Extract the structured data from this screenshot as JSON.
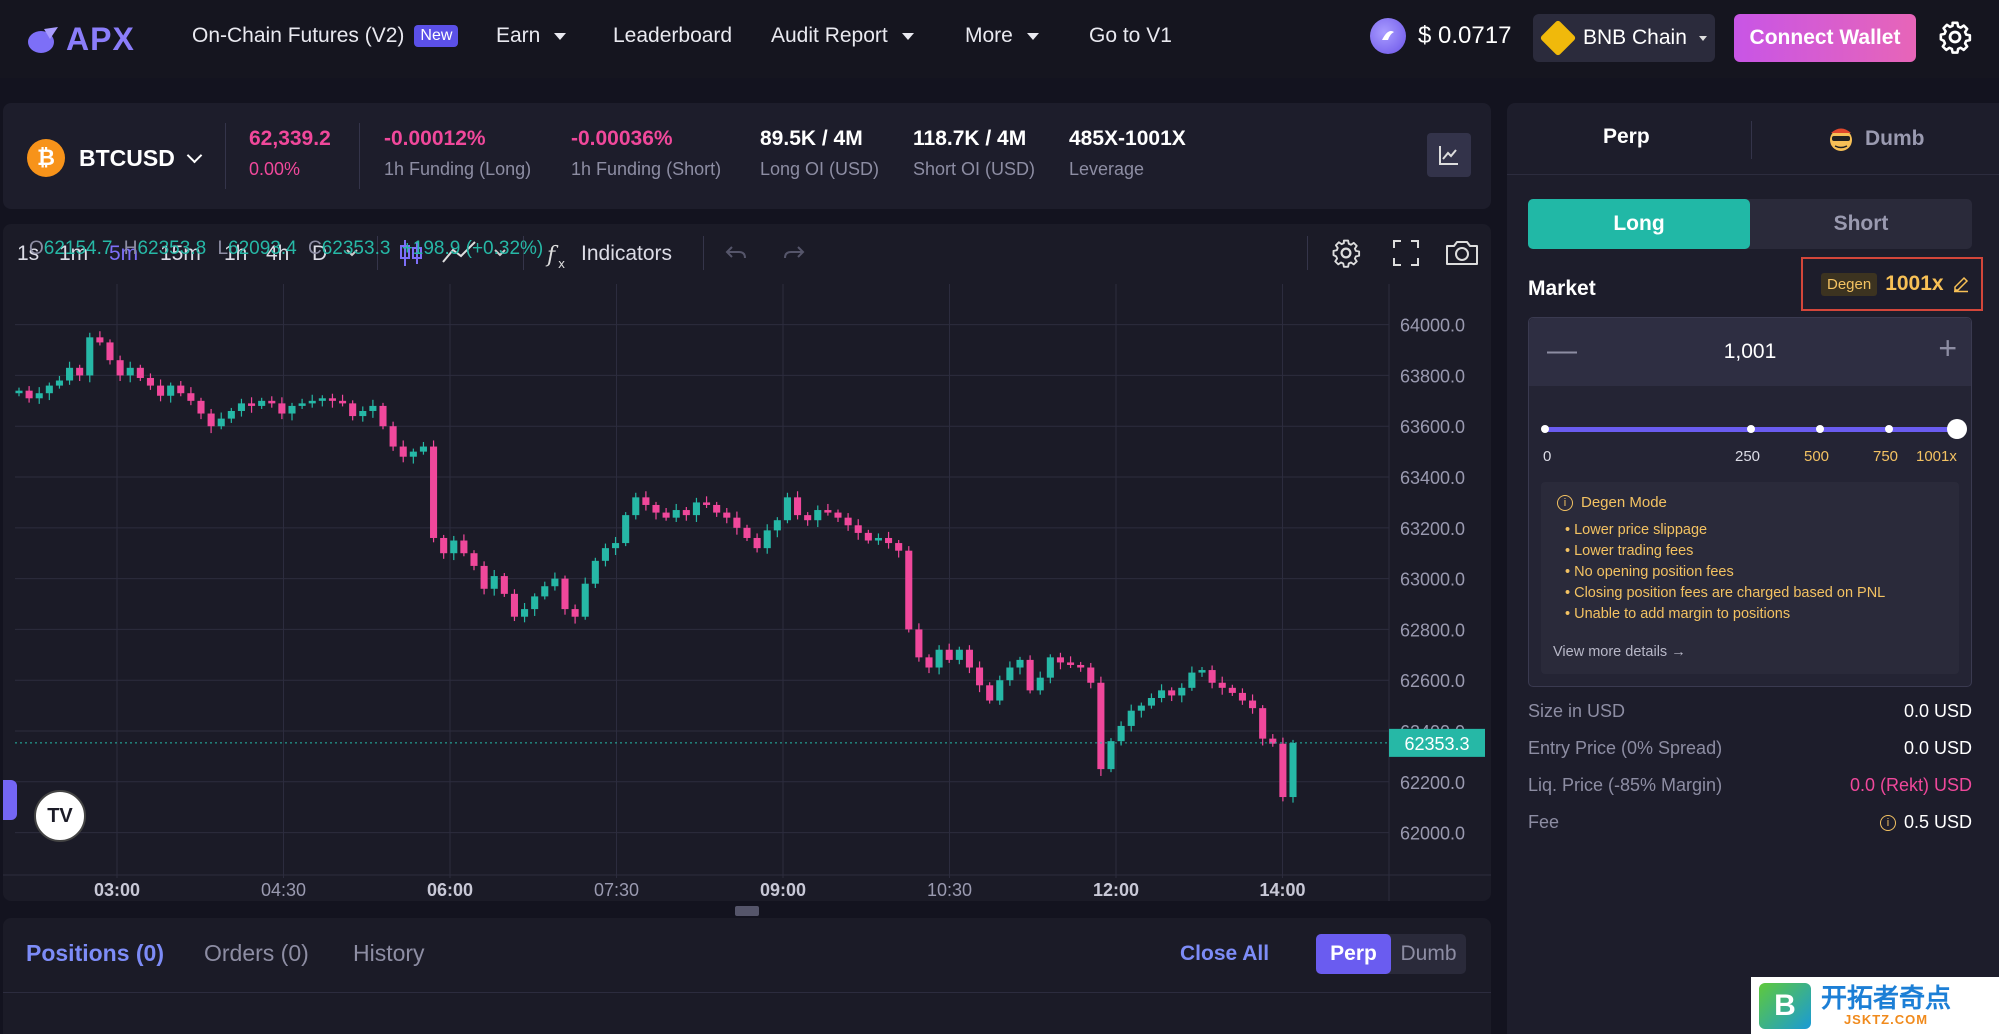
{
  "nav": {
    "logo": "APX",
    "items": [
      {
        "label": "On-Chain Futures (V2)",
        "badge": "New"
      },
      {
        "label": "Earn",
        "caret": true
      },
      {
        "label": "Leaderboard"
      },
      {
        "label": "Audit Report",
        "caret": true
      },
      {
        "label": "More",
        "caret": true
      },
      {
        "label": "Go to V1"
      }
    ],
    "token_price": "$ 0.0717",
    "chain": "BNB Chain",
    "connect": "Connect Wallet"
  },
  "ticker": {
    "pair": "BTCUSD",
    "coin_symbol": "₿",
    "price": "62,339.2",
    "change": "0.00%",
    "stats": [
      {
        "value": "-0.00012%",
        "label": "1h Funding (Long)",
        "color": "pink"
      },
      {
        "value": "-0.00036%",
        "label": "1h Funding (Short)",
        "color": "pink"
      },
      {
        "value": "89.5K / 4M",
        "label": "Long OI (USD)"
      },
      {
        "value": "118.7K / 4M",
        "label": "Short OI (USD)"
      },
      {
        "value": "485X-1001X",
        "label": "Leverage"
      }
    ]
  },
  "toolbar": {
    "timeframes": [
      "1s",
      "1m",
      "5m",
      "15m",
      "1h",
      "4h",
      "D"
    ],
    "active_timeframe": "5m",
    "indicators": "Indicators"
  },
  "ohlc": {
    "o": "62154.7",
    "h": "62353.8",
    "l": "62093.4",
    "c": "62353.3",
    "chg": "+198.9 (+0.32%)"
  },
  "chart_data": {
    "type": "candlestick",
    "title": "",
    "x_ticks": [
      "03:00",
      "04:30",
      "06:00",
      "07:30",
      "09:00",
      "10:30",
      "12:00",
      "14:00"
    ],
    "bold_ticks": [
      "03:00",
      "06:00",
      "09:00",
      "12:00",
      "14:00"
    ],
    "y_ticks": [
      "64000.0",
      "63800.0",
      "63600.0",
      "63400.0",
      "63200.0",
      "63000.0",
      "62800.0",
      "62600.0",
      "62400.0",
      "62200.0",
      "62000.0"
    ],
    "ylim": [
      61900,
      64160
    ],
    "last_price": "62353.3",
    "up_color": "#26b8a6",
    "down_color": "#f0489b",
    "close_path": [
      63740,
      63710,
      63730,
      63760,
      63780,
      63830,
      63800,
      63950,
      63930,
      63860,
      63800,
      63830,
      63790,
      63760,
      63720,
      63760,
      63730,
      63700,
      63650,
      63600,
      63630,
      63660,
      63690,
      63680,
      63700,
      63690,
      63650,
      63680,
      63690,
      63700,
      63710,
      63700,
      63690,
      63640,
      63660,
      63680,
      63600,
      63520,
      63480,
      63500,
      63520,
      63160,
      63100,
      63150,
      63100,
      63050,
      62960,
      63010,
      62940,
      62850,
      62880,
      62930,
      62970,
      63000,
      62880,
      62850,
      62980,
      63070,
      63120,
      63140,
      63250,
      63320,
      63290,
      63260,
      63240,
      63270,
      63250,
      63300,
      63290,
      63260,
      63240,
      63200,
      63160,
      63120,
      63190,
      63230,
      63320,
      63250,
      63230,
      63270,
      63260,
      63240,
      63210,
      63180,
      63150,
      63160,
      63140,
      63110,
      62800,
      62690,
      62650,
      62720,
      62680,
      62720,
      62650,
      62580,
      62520,
      62600,
      62650,
      62680,
      62560,
      62610,
      62690,
      62670,
      62660,
      62650,
      62590,
      62250,
      62360,
      62420,
      62480,
      62500,
      62530,
      62560,
      62540,
      62570,
      62630,
      62640,
      62590,
      62570,
      62550,
      62520,
      62490,
      62370,
      62350,
      62140,
      62353
    ]
  },
  "positions": {
    "tabs": [
      "Positions (0)",
      "Orders (0)",
      "History"
    ],
    "close_all": "Close All",
    "seg": [
      "Perp",
      "Dumb"
    ]
  },
  "trade": {
    "tabs": [
      "Perp",
      "Dumb"
    ],
    "long": "Long",
    "short": "Short",
    "market": "Market",
    "degen_pill": "Degen",
    "leverage": "1001x",
    "stepper_value": "1,001",
    "slider_labels": [
      "0",
      "250",
      "500",
      "750",
      "1001x"
    ],
    "slider_fraction": 1.0,
    "degen_title": "Degen Mode",
    "degen_items": [
      "• Lower price slippage",
      "• Lower trading fees",
      "• No opening position fees",
      "• Closing position fees are charged based on PNL",
      "• Unable to add margin to positions"
    ],
    "view_more": "View more details →",
    "rows": [
      {
        "label": "Size in USD",
        "value": "0.0 USD"
      },
      {
        "label": "Entry Price (0% Spread)",
        "value": "0.0 USD"
      },
      {
        "label": "Liq. Price (-85% Margin)",
        "value": "0.0 (Rekt) USD",
        "color": "pink"
      },
      {
        "label": "Fee",
        "value": "0.5 USD",
        "icon": "info-icon"
      }
    ]
  },
  "watermark": {
    "line1": "开拓者奇点",
    "line2": "JSKTZ.COM",
    "mark": "B"
  }
}
